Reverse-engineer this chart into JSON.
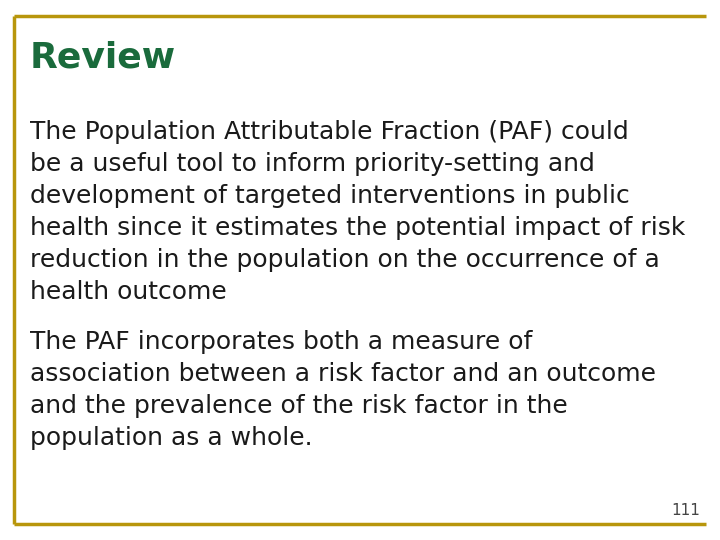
{
  "title": "Review",
  "title_color": "#1a6b3c",
  "title_fontsize": 26,
  "title_bold": true,
  "paragraph1_lines": [
    "The Population Attributable Fraction (PAF) could",
    "be a useful tool to inform priority-setting and",
    "development of targeted interventions in public",
    "health since it estimates the potential impact of risk",
    "reduction in the population on the occurrence of a",
    "health outcome"
  ],
  "paragraph2_lines": [
    "The PAF incorporates both a measure of",
    "association between a risk factor and an outcome",
    "and the prevalence of the risk factor in the",
    "population as a whole."
  ],
  "body_fontsize": 18,
  "body_color": "#1a1a1a",
  "background_color": "#ffffff",
  "border_color": "#b8960c",
  "border_lw": 2.5,
  "page_number": "111",
  "page_number_fontsize": 11,
  "page_number_color": "#444444"
}
